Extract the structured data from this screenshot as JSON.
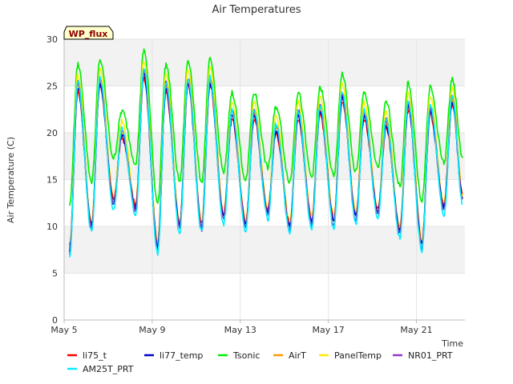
{
  "chart_data": {
    "type": "line",
    "title": "Air Temperatures",
    "xlabel": "Time",
    "ylabel": "Air Temperature (C)",
    "ylim": [
      0,
      30
    ],
    "yticks": [
      0,
      5,
      10,
      15,
      20,
      25,
      30
    ],
    "xlim_days": [
      5.0,
      23.2
    ],
    "xticks": [
      {
        "day": 5,
        "label": "May 5"
      },
      {
        "day": 9,
        "label": "May 9"
      },
      {
        "day": 13,
        "label": "May 13"
      },
      {
        "day": 17,
        "label": "May 17"
      },
      {
        "day": 21,
        "label": "May 21"
      }
    ],
    "grid": true,
    "legend_placement": "bottom",
    "site_tag": "WP_flux",
    "colors": {
      "tag_bg": "#ffffcc",
      "band": "#f2f2f2",
      "axis": "#bbbbbb"
    },
    "daily_cycle": {
      "days": [
        5,
        6,
        7,
        8,
        9,
        10,
        11,
        12,
        13,
        14,
        15,
        16,
        17,
        18,
        19,
        20,
        21,
        22
      ],
      "min_hour": 6,
      "max_hour": 15,
      "base_min": [
        7.5,
        10.0,
        12.5,
        12.0,
        7.8,
        10.0,
        10.0,
        11.0,
        10.2,
        11.5,
        10.0,
        10.5,
        10.5,
        11.0,
        11.5,
        9.5,
        8.0,
        12.0
      ],
      "base_max": [
        24.5,
        25.0,
        19.5,
        26.0,
        24.5,
        25.0,
        25.0,
        21.5,
        21.5,
        20.0,
        21.5,
        22.0,
        23.5,
        21.5,
        20.5,
        22.5,
        22.0,
        23.0
      ],
      "end_day": 23.1,
      "end_value": 13.0
    },
    "series": [
      {
        "name": "li75_t",
        "color": "#ff0000",
        "max_offset": 0.0,
        "min_offset": 0.3
      },
      {
        "name": "li77_temp",
        "color": "#0000cc",
        "max_offset": 0.3,
        "min_offset": 0.0
      },
      {
        "name": "Tsonic",
        "color": "#00ee00",
        "max_offset": 2.8,
        "min_offset": 4.8
      },
      {
        "name": "AirT",
        "color": "#ff9900",
        "max_offset": 0.6,
        "min_offset": 0.2
      },
      {
        "name": "PanelTemp",
        "color": "#ffee00",
        "max_offset": 1.8,
        "min_offset": 0.5
      },
      {
        "name": "NR01_PRT",
        "color": "#9933cc",
        "max_offset": 0.8,
        "min_offset": -0.3
      },
      {
        "name": "AM25T_PRT",
        "color": "#00eeff",
        "max_offset": 0.9,
        "min_offset": -0.7
      }
    ]
  }
}
